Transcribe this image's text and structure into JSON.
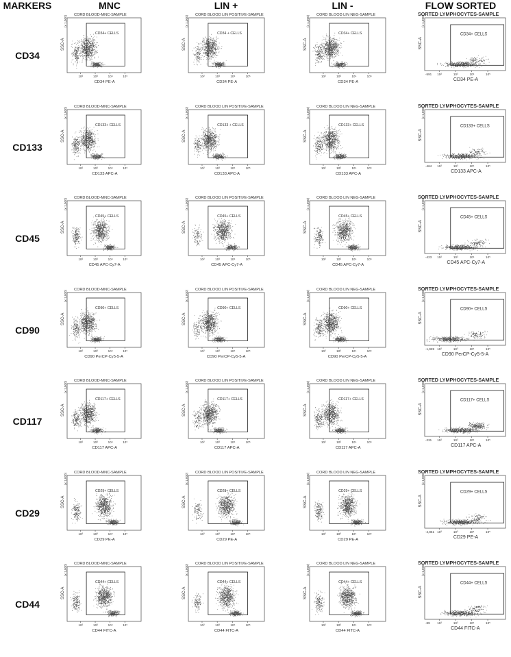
{
  "columns": {
    "markers": "MARKERS",
    "mnc": "MNC",
    "lin_pos": "LIN +",
    "lin_neg": "LIN -",
    "flow_sorted": "FLOW SORTED"
  },
  "sample_titles": {
    "mnc": "CORD BLOOD-MNC-SAMPLE",
    "lin_pos": "CORD BLOOD LIN POSITIVE-SAMPLE",
    "lin_neg": "CORD BLOOD LIN NEG-SAMPLE",
    "flow_sorted": "SORTED LYMPHOCYTES-SAMPLE"
  },
  "y_axis_label": "SSC-A",
  "y_axis_scale_label": "(x 1,000)",
  "chart_data": {
    "type": "scatter",
    "description_note": "7x4 grid of flow cytometry dot plots (SSC-A vs marker fluorescence), each with a rectangular positive gate",
    "x_tick_labels": [
      "10²",
      "10³",
      "10⁴",
      "10⁵"
    ],
    "rows": [
      {
        "marker": "CD34",
        "gate": "CD34+ CELLS",
        "gate_lin_pos": "CD34 + CELLS",
        "xlabel": "CD34 PE-A",
        "sorted_min": "-591"
      },
      {
        "marker": "CD133",
        "gate": "CD133+ CELLS",
        "gate_lin_pos": "CD133 + CELLS",
        "xlabel": "CD133 APC-A",
        "sorted_min": "-464"
      },
      {
        "marker": "CD45",
        "gate": "CD45+ CELLS",
        "gate_lin_pos": "CD45+ CELLS",
        "xlabel": "CD45 APC-Cy7-A",
        "sorted_min": "-423"
      },
      {
        "marker": "CD90",
        "gate": "CD90+ CELLS",
        "gate_lin_pos": "CD90+ CELLS",
        "xlabel": "CD90 PerCP-Cy5-5-A",
        "sorted_min": "-1,939"
      },
      {
        "marker": "CD117",
        "gate": "CD117+ CELLS",
        "gate_lin_pos": "CD117+ CELLS",
        "xlabel": "CD117 APC-A",
        "sorted_min": "-231"
      },
      {
        "marker": "CD29",
        "gate": "CD29+ CELLS",
        "gate_lin_pos": "CD29+ CELLS",
        "xlabel": "CD29 PE-A",
        "sorted_min": "-4,861"
      },
      {
        "marker": "CD44",
        "gate": "CD44+ CELLS",
        "gate_lin_pos": "CD44+ CELLS",
        "xlabel": "CD44 FITC-A",
        "sorted_min": "-89"
      }
    ]
  }
}
